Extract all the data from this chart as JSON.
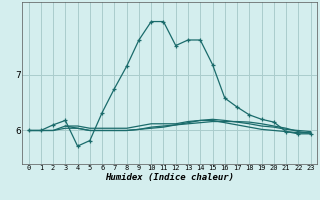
{
  "title": "",
  "xlabel": "Humidex (Indice chaleur)",
  "bg_color": "#d4eeee",
  "grid_color": "#aacccc",
  "line_color": "#1a6b6b",
  "x_ticks": [
    0,
    1,
    2,
    3,
    4,
    5,
    6,
    7,
    8,
    9,
    10,
    11,
    12,
    13,
    14,
    15,
    16,
    17,
    18,
    19,
    20,
    21,
    22,
    23
  ],
  "y_ticks": [
    6,
    7
  ],
  "ylim": [
    5.4,
    8.3
  ],
  "xlim": [
    -0.5,
    23.5
  ],
  "series1_x": [
    0,
    1,
    2,
    3,
    4,
    5,
    6,
    7,
    8,
    9,
    10,
    11,
    12,
    13,
    14,
    15,
    16,
    17,
    18,
    19,
    20,
    21,
    22,
    23
  ],
  "series1_y": [
    6.0,
    6.0,
    6.1,
    6.18,
    5.72,
    5.82,
    6.32,
    6.75,
    7.15,
    7.62,
    7.95,
    7.95,
    7.52,
    7.62,
    7.62,
    7.18,
    6.58,
    6.42,
    6.28,
    6.2,
    6.15,
    5.98,
    5.94,
    5.94
  ],
  "series2_x": [
    0,
    1,
    2,
    3,
    4,
    5,
    6,
    7,
    8,
    9,
    10,
    11,
    12,
    13,
    14,
    15,
    16,
    17,
    18,
    19,
    20,
    21,
    22,
    23
  ],
  "series2_y": [
    6.0,
    6.0,
    6.0,
    6.08,
    6.08,
    6.04,
    6.04,
    6.04,
    6.04,
    6.08,
    6.12,
    6.12,
    6.12,
    6.16,
    6.18,
    6.2,
    6.18,
    6.15,
    6.12,
    6.08,
    6.06,
    6.02,
    6.0,
    5.98
  ],
  "series3_x": [
    0,
    1,
    2,
    3,
    4,
    5,
    6,
    7,
    8,
    9,
    10,
    11,
    12,
    13,
    14,
    15,
    16,
    17,
    18,
    19,
    20,
    21,
    22,
    23
  ],
  "series3_y": [
    6.0,
    6.0,
    6.0,
    6.04,
    6.04,
    6.0,
    6.0,
    6.0,
    6.0,
    6.02,
    6.04,
    6.06,
    6.1,
    6.14,
    6.18,
    6.18,
    6.14,
    6.1,
    6.06,
    6.02,
    6.0,
    5.98,
    5.96,
    5.96
  ],
  "series4_x": [
    3,
    4,
    5,
    6,
    7,
    8,
    9,
    10,
    11,
    12,
    13,
    14,
    15,
    16,
    17,
    18,
    19,
    20,
    21,
    22,
    23
  ],
  "series4_y": [
    6.08,
    6.04,
    6.0,
    6.0,
    6.0,
    6.0,
    6.02,
    6.06,
    6.08,
    6.1,
    6.12,
    6.14,
    6.16,
    6.16,
    6.16,
    6.15,
    6.12,
    6.08,
    6.04,
    5.98,
    5.95
  ]
}
